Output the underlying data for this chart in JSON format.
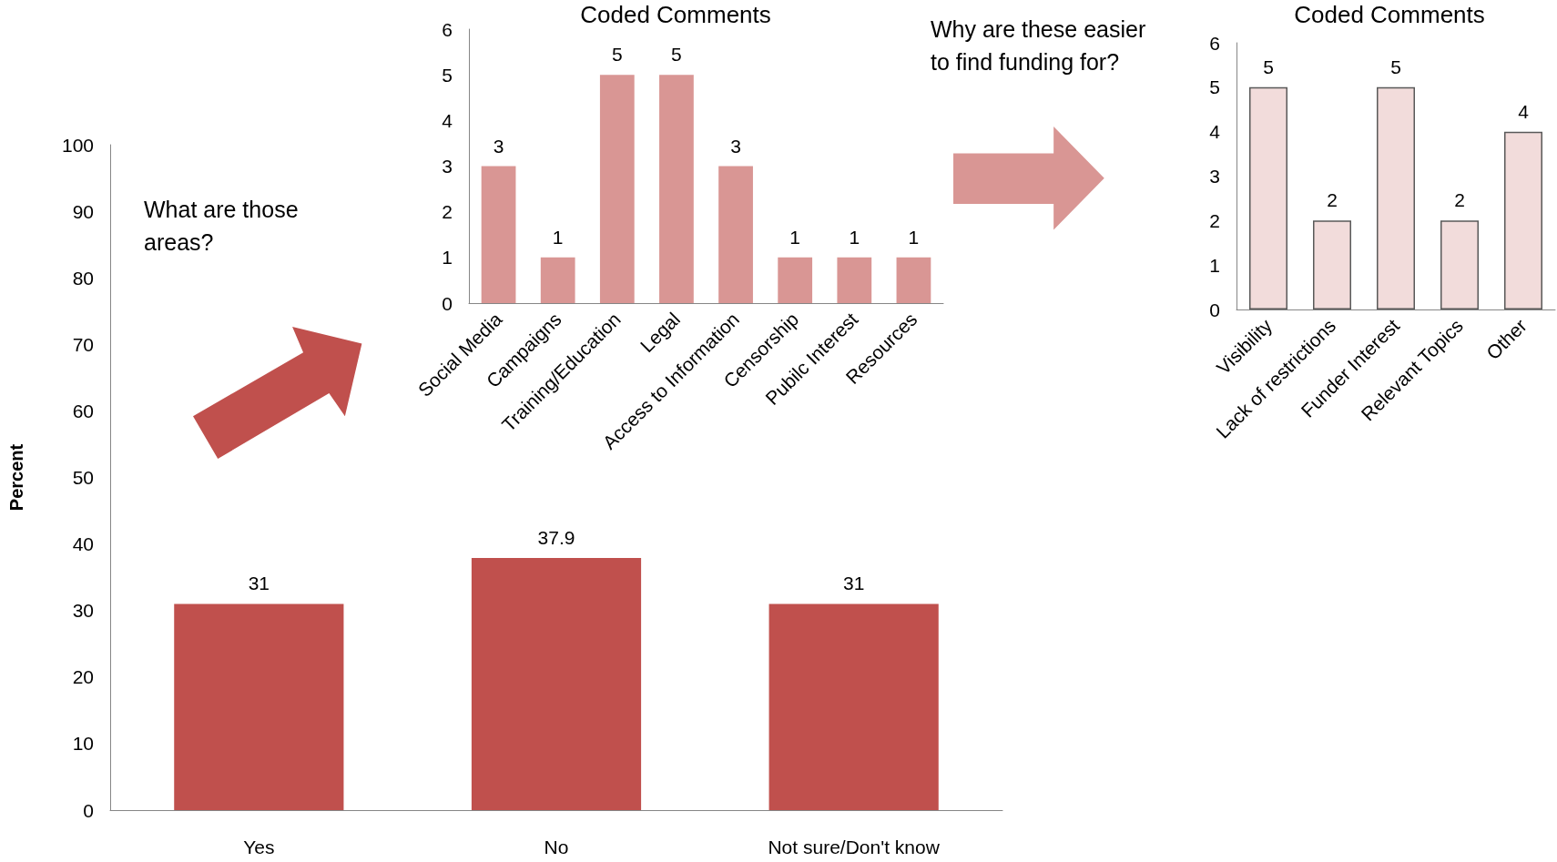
{
  "chart_data": [
    {
      "type": "bar",
      "ylabel": "Percent",
      "categories": [
        "Yes",
        "No",
        "Not sure/Don't know"
      ],
      "values": [
        31,
        37.9,
        31
      ],
      "color": "#c0504d",
      "ylim": [
        0,
        100
      ],
      "yticks": [
        0,
        10,
        20,
        30,
        40,
        50,
        60,
        70,
        80,
        90,
        100
      ],
      "data_labels": true,
      "annotations": [
        "What are those\nareas?"
      ]
    },
    {
      "type": "bar",
      "title": "Coded Comments",
      "categories": [
        "Social Media",
        "Campaigns",
        "Training/Education",
        "Legal",
        "Access to Information",
        "Censorship",
        "Pubilc Interest",
        "Resources"
      ],
      "values": [
        3,
        1,
        5,
        5,
        3,
        1,
        1,
        1
      ],
      "color": "#d99694",
      "ylim": [
        0,
        6
      ],
      "yticks": [
        0,
        1,
        2,
        3,
        4,
        5,
        6
      ],
      "data_labels": true
    },
    {
      "type": "bar",
      "title": "Coded Comments",
      "categories": [
        "Visibility",
        "Lack of restrictions",
        "Funder Interest",
        "Relevant Topics",
        "Other"
      ],
      "values": [
        5,
        2,
        5,
        2,
        4
      ],
      "color": "#f2dcdb",
      "ylim": [
        0,
        6
      ],
      "yticks": [
        0,
        1,
        2,
        3,
        4,
        5,
        6
      ],
      "data_labels": true,
      "annotations": [
        "Why are these easier\nto find funding for?"
      ]
    }
  ]
}
